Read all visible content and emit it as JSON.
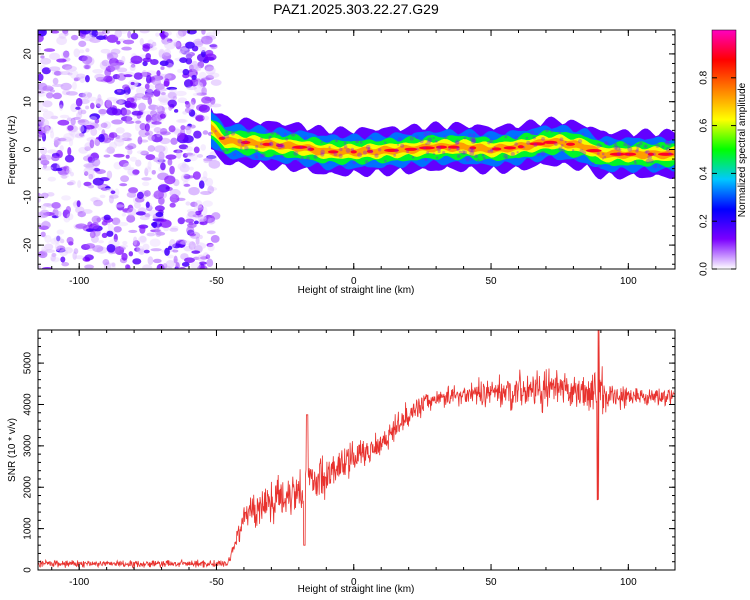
{
  "figure": {
    "title": "PAZ1.2025.303.22.27.G29"
  },
  "chart_data": [
    {
      "type": "heatmap",
      "title": "PAZ1.2025.303.22.27.G29",
      "xlabel": "Height of straight line (km)",
      "ylabel": "Frequency (Hz)",
      "xlim": [
        -115,
        117
      ],
      "ylim": [
        -25,
        25
      ],
      "xticks": [
        -100,
        -50,
        0,
        50,
        100
      ],
      "yticks": [
        -20,
        -10,
        0,
        10,
        20
      ],
      "colorbar": {
        "label": "Normalized spectral amplitude",
        "range": [
          0,
          1
        ],
        "ticks": [
          0.0,
          0.2,
          0.4,
          0.6,
          0.8
        ],
        "colors": [
          "#ffffff",
          "#7b00ff",
          "#0000ff",
          "#00c8ff",
          "#00ff00",
          "#ffff00",
          "#ff8000",
          "#ff0000",
          "#ff00c0"
        ]
      },
      "noise_region": {
        "x": [
          -115,
          -50
        ],
        "y": [
          -25,
          25
        ],
        "amplitude": [
          0.02,
          0.15
        ]
      },
      "ridge": {
        "x": [
          -52,
          -47,
          -40,
          -30,
          -20,
          -10,
          0,
          10,
          20,
          30,
          40,
          50,
          60,
          70,
          75,
          80,
          85,
          90,
          100,
          110,
          117
        ],
        "frequency": [
          4.5,
          1.8,
          1.5,
          1.0,
          0.5,
          -0.5,
          -0.5,
          -0.3,
          0.0,
          0.5,
          0.5,
          0.0,
          0.5,
          1.5,
          1.5,
          1.0,
          0.5,
          -1.0,
          -1.0,
          -1.0,
          -1.0
        ],
        "peak_amplitude": 0.9
      }
    },
    {
      "type": "line",
      "xlabel": "Height of straight line (km)",
      "ylabel": "SNR (10 * v/v)",
      "xlim": [
        -115,
        117
      ],
      "ylim": [
        0,
        5800
      ],
      "xticks": [
        -100,
        -50,
        0,
        50,
        100
      ],
      "yticks": [
        0,
        1000,
        2000,
        3000,
        4000,
        5000
      ],
      "series": [
        {
          "color": "#e8322e",
          "x": [
            -115,
            -100,
            -80,
            -60,
            -50,
            -46,
            -44,
            -40,
            -35,
            -30,
            -25,
            -20,
            -15,
            -10,
            -5,
            0,
            5,
            10,
            15,
            20,
            25,
            30,
            40,
            50,
            60,
            70,
            80,
            85,
            90,
            95,
            100,
            110,
            117
          ],
          "y": [
            150,
            150,
            150,
            150,
            150,
            150,
            500,
            1300,
            1500,
            1700,
            1800,
            2000,
            2150,
            2300,
            2500,
            2700,
            2900,
            3100,
            3400,
            3800,
            4000,
            4150,
            4250,
            4300,
            4350,
            4350,
            4300,
            4300,
            4250,
            4200,
            4200,
            4200,
            4250
          ],
          "noise": [
            80,
            80,
            80,
            80,
            80,
            80,
            200,
            350,
            400,
            450,
            500,
            550,
            500,
            450,
            400,
            350,
            350,
            300,
            280,
            250,
            220,
            200,
            250,
            300,
            400,
            450,
            350,
            350,
            550,
            300,
            200,
            200,
            200
          ]
        }
      ]
    }
  ]
}
